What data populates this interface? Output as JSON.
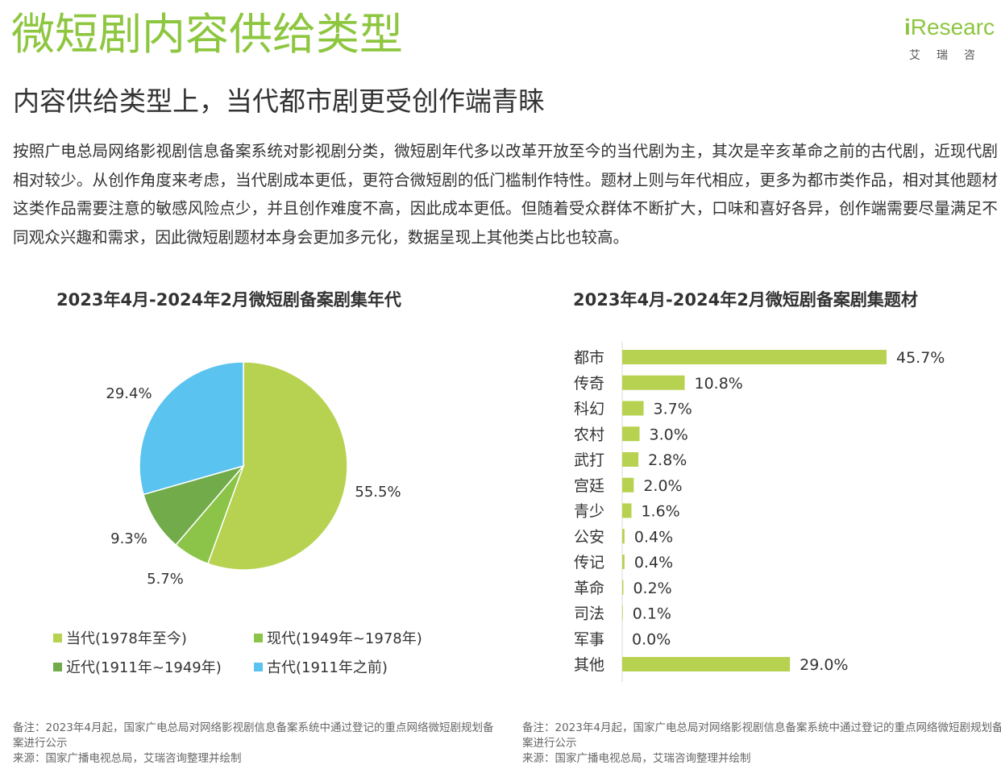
{
  "title": "微短剧内容供给类型",
  "subtitle": "内容供给类型上，当代都市剧更受创作端青睐",
  "logo": {
    "mark_i": "i",
    "mark_rest": "Researc",
    "cn": "艾瑞咨"
  },
  "intro": "按照广电总局网络影视剧信息备案系统对影视剧分类，微短剧年代多以改革开放至今的当代剧为主，其次是辛亥革命之前的古代剧，近现代剧相对较少。从创作角度来考虑，当代剧成本更低，更符合微短剧的低门槛制作特性。题材上则与年代相应，更多为都市类作品，相对其他题材这类作品需要注意的敏感风险点少，并且创作难度不高，因此成本更低。但随着受众群体不断扩大，口味和喜好各异，创作端需要尽量满足不同观众兴趣和需求，因此微短剧题材本身会更加多元化，数据呈现上其他类占比也较高。",
  "chart_data": [
    {
      "type": "pie",
      "title": "2023年4月-2024年2月微短剧备案剧集年代",
      "categories": [
        "当代(1978年至今)",
        "现代(1949年~1978年)",
        "近代(1911年~1949年)",
        "古代(1911年之前)"
      ],
      "values": [
        55.5,
        5.7,
        9.3,
        29.4
      ],
      "labels": [
        "55.5%",
        "5.7%",
        "9.3%",
        "29.4%"
      ],
      "colors": [
        "#B6D250",
        "#8CC449",
        "#72AB4A",
        "#5BC3EF"
      ],
      "legend": "bottom"
    },
    {
      "type": "bar",
      "orientation": "horizontal",
      "title": "2023年4月-2024年2月微短剧备案剧集题材",
      "categories": [
        "都市",
        "传奇",
        "科幻",
        "农村",
        "武打",
        "宫廷",
        "青少",
        "公安",
        "传记",
        "革命",
        "司法",
        "军事",
        "其他"
      ],
      "values": [
        45.7,
        10.8,
        3.7,
        3.0,
        2.8,
        2.0,
        1.6,
        0.4,
        0.4,
        0.2,
        0.1,
        0.0,
        29.0
      ],
      "labels": [
        "45.7%",
        "10.8%",
        "3.7%",
        "3.0%",
        "2.8%",
        "2.0%",
        "1.6%",
        "0.4%",
        "0.4%",
        "0.2%",
        "0.1%",
        "0.0%",
        "29.0%"
      ],
      "color": "#B6D250",
      "xlim": [
        0,
        45.7
      ]
    }
  ],
  "footer_left": {
    "note": "备注：2023年4月起，国家广电总局对网络影视剧信息备案系统中通过登记的重点网络微短剧规划备案进行公示",
    "source": "来源：国家广播电视总局，艾瑞咨询整理并绘制"
  },
  "footer_right": {
    "note": "备注：2023年4月起，国家广电总局对网络影视剧信息备案系统中通过登记的重点网络微短剧规划备案进行公示",
    "source": "来源：国家广播电视总局，艾瑞咨询整理并绘制"
  }
}
